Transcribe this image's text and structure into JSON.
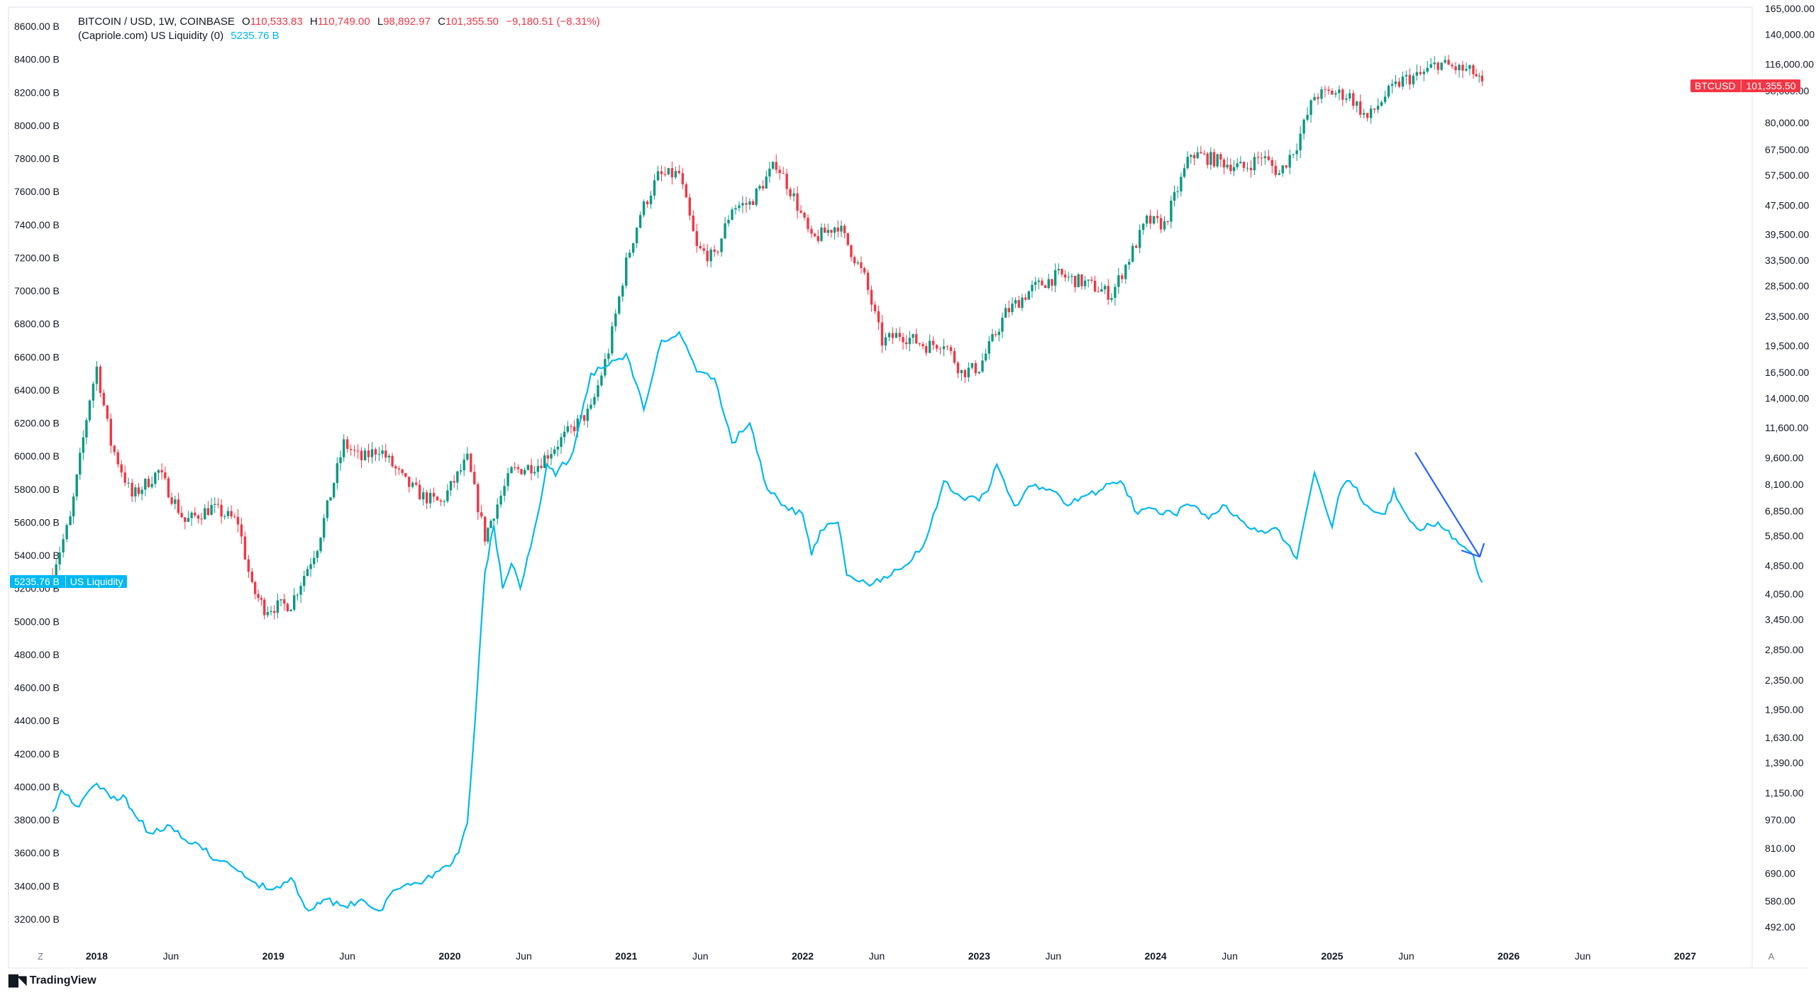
{
  "header": {
    "symbol_line": "BITCOIN / USD, 1W, COINBASE",
    "o_label": "O",
    "o_value": "110,533.83",
    "h_label": "H",
    "h_value": "110,749.00",
    "l_label": "L",
    "l_value": "98,892.97",
    "c_label": "C",
    "c_value": "101,355.50",
    "change": "−9,180.51 (−8.31%)",
    "indicator_name": "(Capriole.com) US Liquidity (0)",
    "indicator_value": "5235.76 B"
  },
  "tags": {
    "btc_symbol": "BTCUSD",
    "btc_value": "101,355.50",
    "liq_value": "5235.76 B",
    "liq_label": "US Liquidity"
  },
  "footer": {
    "brand": "TradingView",
    "zoom_left": "Z",
    "auto_right": "A"
  },
  "colors": {
    "up": "#089981",
    "down": "#f23645",
    "liquidity": "#00b8f2",
    "arrow": "#2962ff"
  },
  "chart_data": {
    "type": "line",
    "x_ticks": [
      "2018",
      "Jun",
      "2019",
      "Jun",
      "2020",
      "Jun",
      "2021",
      "Jun",
      "2022",
      "Jun",
      "2023",
      "Jun",
      "2024",
      "Jun",
      "2025",
      "Jun",
      "2026",
      "Jun",
      "2027"
    ],
    "left_axis_ticks": [
      "8600.00 B",
      "8400.00 B",
      "8200.00 B",
      "8000.00 B",
      "7800.00 B",
      "7600.00 B",
      "7400.00 B",
      "7200.00 B",
      "7000.00 B",
      "6800.00 B",
      "6600.00 B",
      "6400.00 B",
      "6200.00 B",
      "6000.00 B",
      "5800.00 B",
      "5600.00 B",
      "5400.00 B",
      "5200.00 B",
      "5000.00 B",
      "4800.00 B",
      "4600.00 B",
      "4400.00 B",
      "4200.00 B",
      "4000.00 B",
      "3800.00 B",
      "3600.00 B",
      "3400.00 B",
      "3200.00 B"
    ],
    "right_axis_ticks": [
      "165,000.00",
      "140,000.00",
      "116,000.00",
      "98,000.00",
      "80,000.00",
      "67,500.00",
      "57,500.00",
      "47,500.00",
      "39,500.00",
      "33,500.00",
      "28,500.00",
      "23,500.00",
      "19,500.00",
      "16,500.00",
      "14,000.00",
      "11,600.00",
      "9,600.00",
      "8,100.00",
      "6,850.00",
      "5,850.00",
      "4,850.00",
      "4,050.00",
      "3,450.00",
      "2,850.00",
      "2,350.00",
      "1,950.00",
      "1,630.00",
      "1,390.00",
      "1,150.00",
      "970.00",
      "810.00",
      "690.00",
      "580.00",
      "492.00"
    ],
    "right_scale": "log",
    "series": [
      {
        "name": "BITCOIN / USD",
        "style": "candles",
        "axis": "right",
        "x": [
          2017.75,
          2017.85,
          2017.96,
          2018.0,
          2018.08,
          2018.2,
          2018.35,
          2018.5,
          2018.65,
          2018.8,
          2018.88,
          2018.95,
          2019.1,
          2019.25,
          2019.4,
          2019.5,
          2019.6,
          2019.75,
          2019.85,
          2019.95,
          2020.1,
          2020.2,
          2020.25,
          2020.35,
          2020.5,
          2020.65,
          2020.8,
          2020.9,
          2021.0,
          2021.08,
          2021.18,
          2021.3,
          2021.4,
          2021.5,
          2021.6,
          2021.7,
          2021.85,
          2021.95,
          2022.05,
          2022.2,
          2022.35,
          2022.45,
          2022.55,
          2022.7,
          2022.8,
          2022.9,
          2023.0,
          2023.15,
          2023.3,
          2023.45,
          2023.6,
          2023.75,
          2023.85,
          2023.95,
          2024.05,
          2024.2,
          2024.35,
          2024.5,
          2024.6,
          2024.7,
          2024.8,
          2024.9,
          2025.0,
          2025.1,
          2025.2,
          2025.3,
          2025.4,
          2025.5,
          2025.6,
          2025.7,
          2025.8,
          2025.85
        ],
        "close": [
          4700,
          6500,
          14000,
          17000,
          10500,
          7500,
          8800,
          6400,
          7000,
          6400,
          4200,
          3700,
          3800,
          5500,
          10500,
          9500,
          10200,
          8200,
          7500,
          7200,
          9500,
          5800,
          6800,
          8800,
          9200,
          11000,
          13000,
          19000,
          33000,
          45000,
          57000,
          58000,
          36000,
          34000,
          47000,
          48000,
          62000,
          50000,
          38000,
          42000,
          30000,
          20000,
          21000,
          19500,
          20000,
          16500,
          17000,
          24000,
          28000,
          30500,
          29000,
          27000,
          34000,
          43000,
          42000,
          66000,
          63000,
          60000,
          65000,
          58000,
          70000,
          95000,
          97000,
          95000,
          82000,
          95000,
          105000,
          108000,
          117000,
          113000,
          110000,
          101355.5
        ]
      },
      {
        "name": "(Capriole.com) US Liquidity (0)",
        "style": "line",
        "axis": "left",
        "x": [
          2017.75,
          2017.8,
          2017.9,
          2018.0,
          2018.08,
          2018.15,
          2018.2,
          2018.3,
          2018.4,
          2018.5,
          2018.6,
          2018.7,
          2018.8,
          2018.9,
          2019.0,
          2019.1,
          2019.2,
          2019.25,
          2019.3,
          2019.4,
          2019.5,
          2019.6,
          2019.7,
          2019.8,
          2019.9,
          2020.0,
          2020.05,
          2020.1,
          2020.15,
          2020.2,
          2020.25,
          2020.3,
          2020.35,
          2020.4,
          2020.5,
          2020.55,
          2020.6,
          2020.7,
          2020.8,
          2020.9,
          2021.0,
          2021.1,
          2021.2,
          2021.3,
          2021.4,
          2021.5,
          2021.6,
          2021.7,
          2021.8,
          2021.9,
          2022.0,
          2022.05,
          2022.1,
          2022.2,
          2022.25,
          2022.3,
          2022.4,
          2022.5,
          2022.6,
          2022.7,
          2022.8,
          2022.9,
          2023.0,
          2023.05,
          2023.1,
          2023.2,
          2023.3,
          2023.4,
          2023.5,
          2023.6,
          2023.7,
          2023.8,
          2023.9,
          2024.0,
          2024.1,
          2024.2,
          2024.3,
          2024.4,
          2024.5,
          2024.6,
          2024.7,
          2024.8,
          2024.9,
          2025.0,
          2025.05,
          2025.1,
          2025.2,
          2025.3,
          2025.35,
          2025.4,
          2025.5,
          2025.6,
          2025.7,
          2025.75,
          2025.8,
          2025.85
        ],
        "values": [
          3850,
          3980,
          3880,
          4020,
          3930,
          3950,
          3860,
          3720,
          3770,
          3680,
          3620,
          3550,
          3490,
          3420,
          3380,
          3450,
          3250,
          3300,
          3320,
          3280,
          3320,
          3250,
          3380,
          3420,
          3450,
          3520,
          3600,
          3780,
          4500,
          5300,
          5580,
          5200,
          5350,
          5200,
          5650,
          5950,
          5880,
          6030,
          6500,
          6550,
          6620,
          6280,
          6700,
          6750,
          6510,
          6470,
          6080,
          6200,
          5800,
          5700,
          5650,
          5400,
          5550,
          5600,
          5280,
          5250,
          5230,
          5280,
          5350,
          5500,
          5850,
          5750,
          5730,
          5790,
          5950,
          5700,
          5820,
          5800,
          5700,
          5760,
          5800,
          5850,
          5650,
          5680,
          5650,
          5700,
          5620,
          5700,
          5600,
          5550,
          5550,
          5380,
          5900,
          5570,
          5800,
          5850,
          5700,
          5650,
          5800,
          5680,
          5550,
          5600,
          5500,
          5450,
          5400,
          5235.76
        ]
      }
    ],
    "annotation": "downward trend arrow on US Liquidity"
  }
}
